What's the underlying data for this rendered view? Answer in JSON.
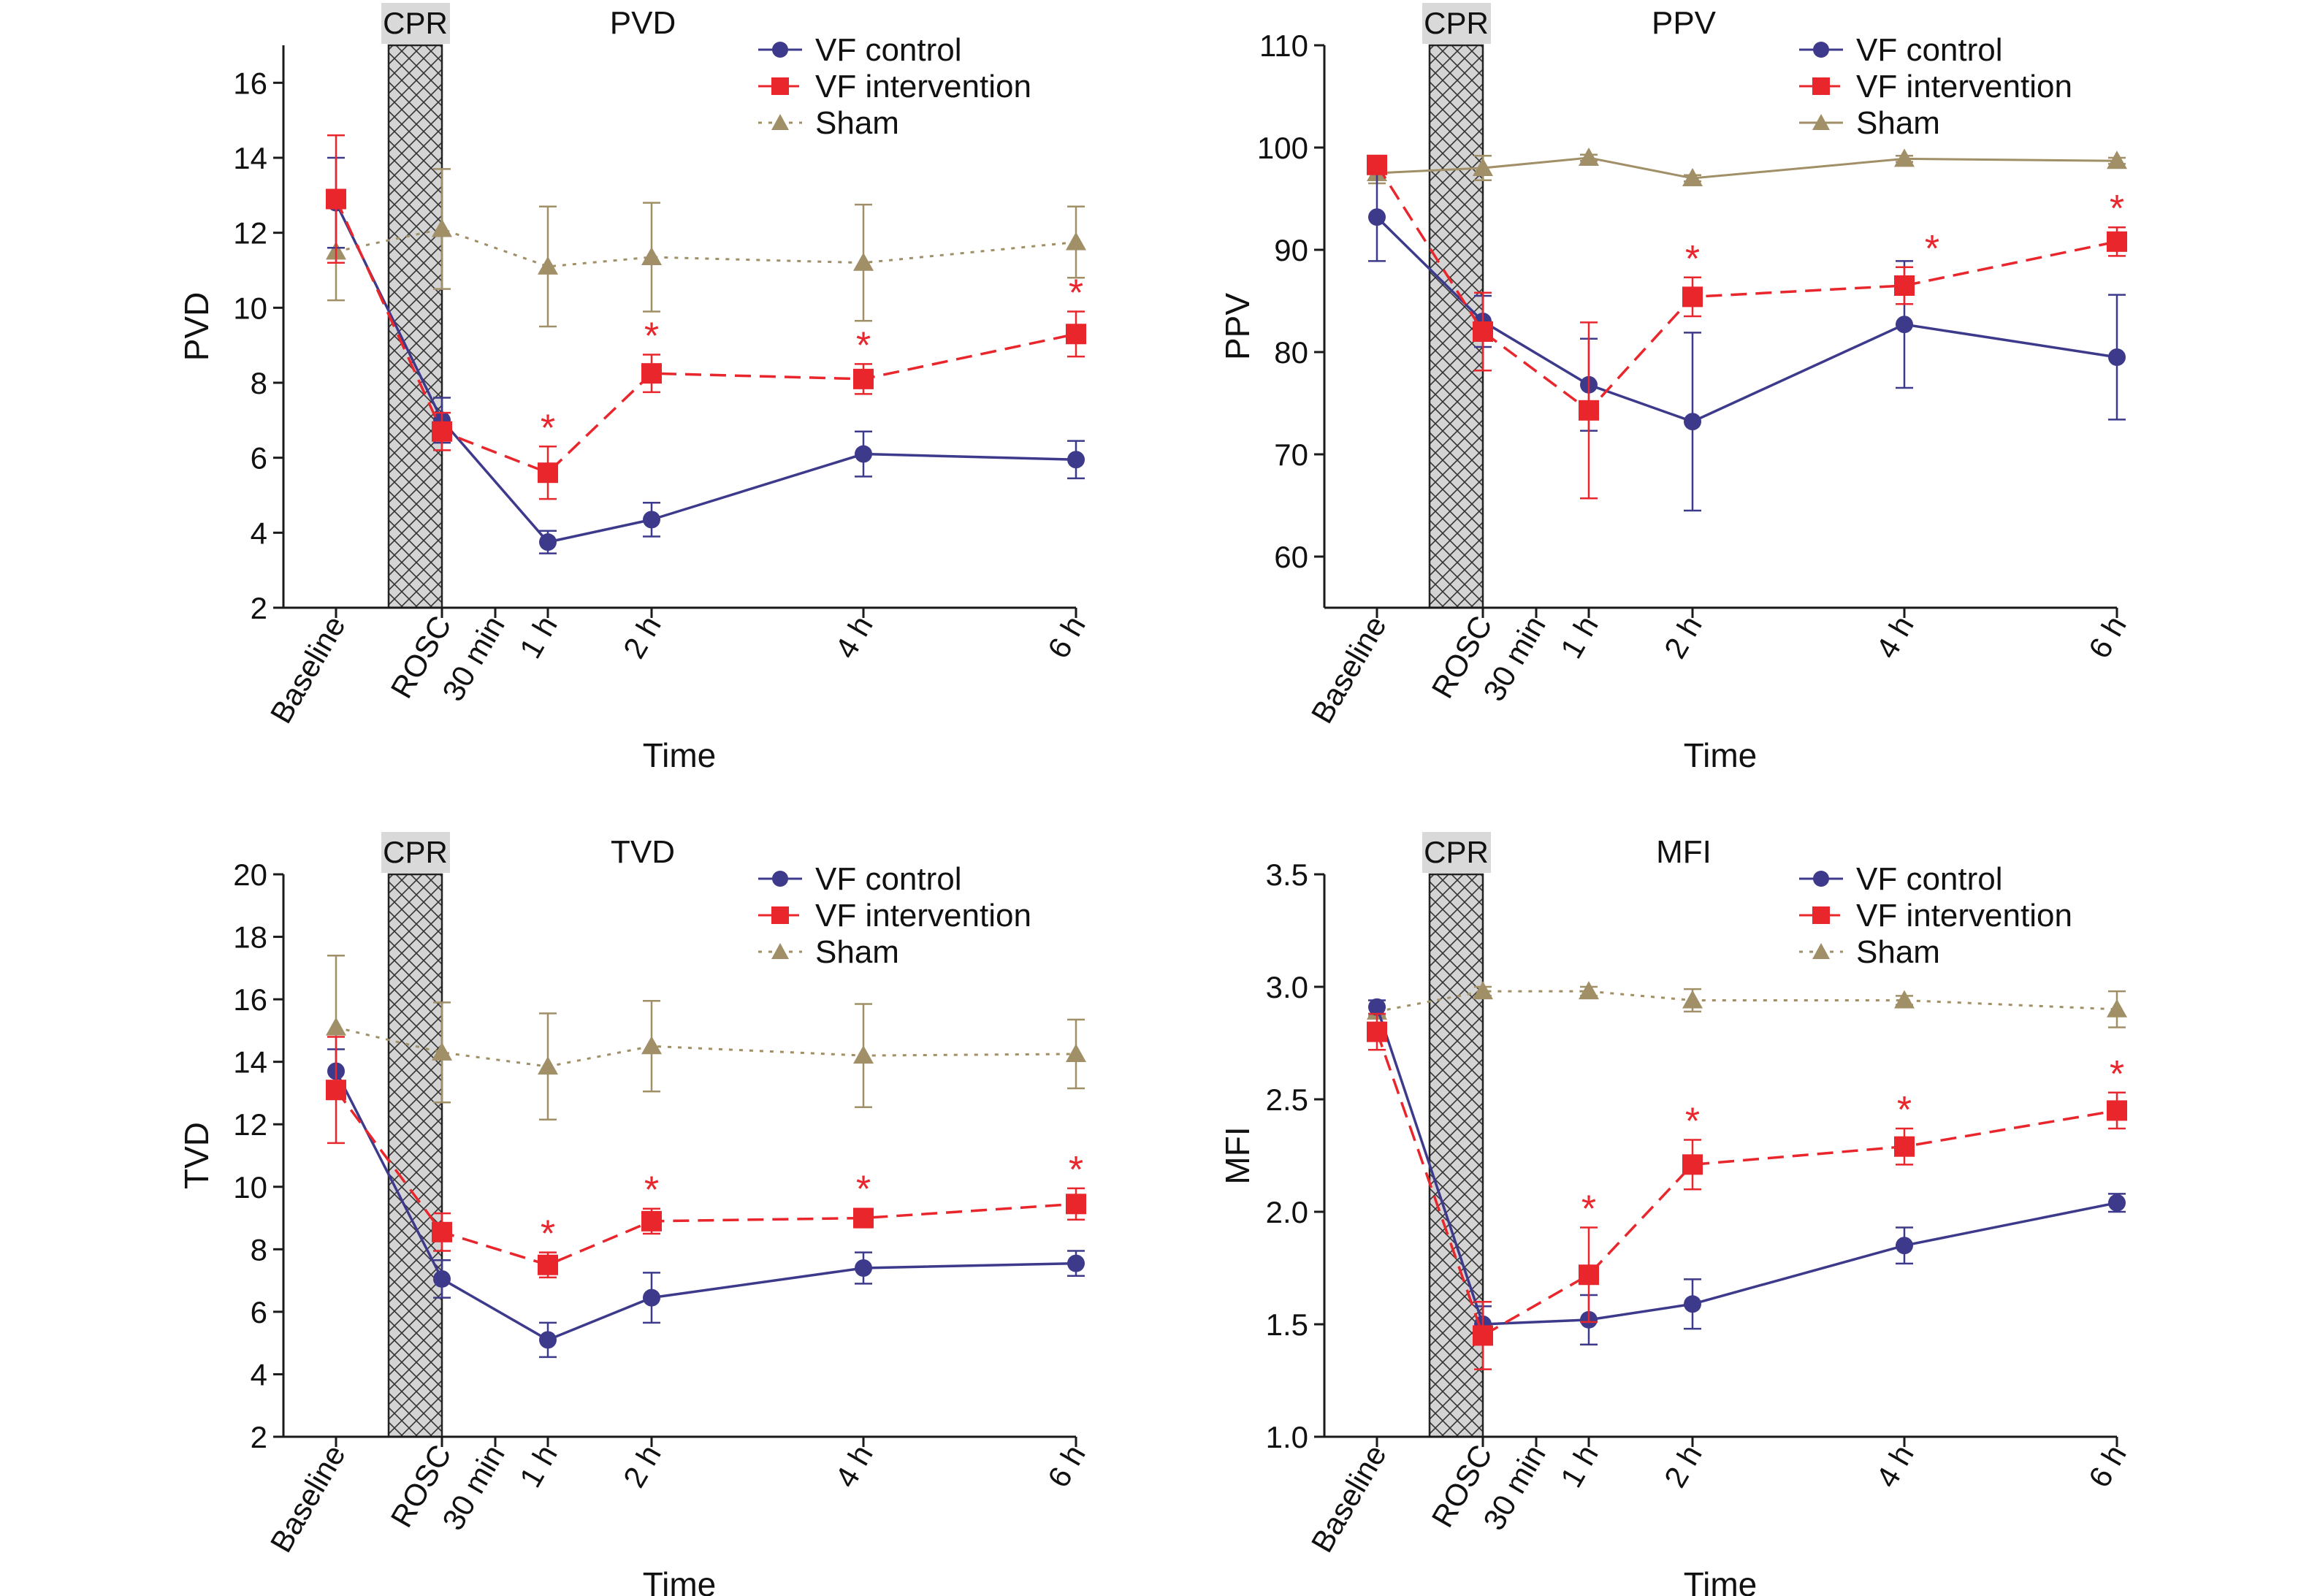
{
  "colors": {
    "control": "#3d3a8c",
    "intervention": "#e8262c",
    "sham": "#a08f67",
    "axis": "#1a1a1a",
    "cpr_box": "#d4d4d4",
    "cpr_label_box": "#d9d9d9"
  },
  "cpr_label": "CPR",
  "time_ticks": [
    "Baseline",
    "ROSC",
    "30 min",
    "1 h",
    "2 h",
    "4 h",
    "6 h"
  ],
  "chart_data": [
    {
      "type": "line",
      "panel": "PVD",
      "title": "PVD",
      "xlabel": "Time",
      "ylabel": "PVD",
      "ylim": [
        2,
        17
      ],
      "yticks": [
        "2",
        "4",
        "6",
        "8",
        "10",
        "12",
        "14",
        "16"
      ],
      "x": [
        "Baseline",
        "ROSC",
        "30 min",
        "1 h",
        "2 h",
        "4 h",
        "6 h"
      ],
      "series": [
        {
          "name": "VF control",
          "marker": "circle",
          "style": "solid",
          "points": [
            [
              "Baseline",
              12.8,
              1.2
            ],
            [
              "ROSC",
              7.0,
              0.6
            ],
            [
              "1 h",
              3.75,
              0.3
            ],
            [
              "2 h",
              4.35,
              0.45
            ],
            [
              "4 h",
              6.1,
              0.6
            ],
            [
              "6 h",
              5.95,
              0.5
            ]
          ]
        },
        {
          "name": "VF intervention",
          "marker": "square",
          "style": "dashed",
          "points": [
            [
              "Baseline",
              12.9,
              1.7
            ],
            [
              "ROSC",
              6.7,
              0.5
            ],
            [
              "1 h",
              5.6,
              0.7
            ],
            [
              "2 h",
              8.25,
              0.5
            ],
            [
              "4 h",
              8.1,
              0.4
            ],
            [
              "6 h",
              9.3,
              0.6
            ]
          ],
          "significant": [
            "1 h",
            "2 h",
            "4 h",
            "6 h"
          ]
        },
        {
          "name": "Sham",
          "marker": "triangle",
          "style": "dotted",
          "points": [
            [
              "Baseline",
              11.5,
              1.3
            ],
            [
              "ROSC",
              12.1,
              1.6
            ],
            [
              "1 h",
              11.1,
              1.6
            ],
            [
              "2 h",
              11.35,
              1.45
            ],
            [
              "4 h",
              11.2,
              1.55
            ],
            [
              "6 h",
              11.75,
              0.95
            ]
          ]
        }
      ]
    },
    {
      "type": "line",
      "panel": "PPV",
      "title": "PPV",
      "xlabel": "Time",
      "ylabel": "PPV",
      "ylim": [
        55,
        110
      ],
      "yticks": [
        "60",
        "70",
        "80",
        "90",
        "100",
        "110"
      ],
      "x": [
        "Baseline",
        "ROSC",
        "30 min",
        "1 h",
        "2 h",
        "4 h",
        "6 h"
      ],
      "series": [
        {
          "name": "VF control",
          "marker": "circle",
          "style": "solid",
          "points": [
            [
              "Baseline",
              93.2,
              4.3
            ],
            [
              "ROSC",
              83.0,
              2.5
            ],
            [
              "1 h",
              76.8,
              4.5
            ],
            [
              "2 h",
              73.2,
              8.7
            ],
            [
              "4 h",
              82.7,
              6.2
            ],
            [
              "6 h",
              79.5,
              6.1
            ]
          ]
        },
        {
          "name": "VF intervention",
          "marker": "square",
          "style": "dashed",
          "points": [
            [
              "Baseline",
              98.3,
              0.8
            ],
            [
              "ROSC",
              82.0,
              3.8
            ],
            [
              "1 h",
              74.3,
              8.6
            ],
            [
              "2 h",
              85.4,
              1.9
            ],
            [
              "4 h",
              86.5,
              1.8
            ],
            [
              "6 h",
              90.8,
              1.4
            ]
          ],
          "significant": [
            "2 h",
            "4 h",
            "6 h"
          ]
        },
        {
          "name": "Sham",
          "marker": "triangle",
          "style": "solid",
          "points": [
            [
              "Baseline",
              97.5,
              1.0
            ],
            [
              "ROSC",
              98.0,
              1.2
            ],
            [
              "1 h",
              99.0,
              0.3
            ],
            [
              "2 h",
              97.0,
              0.3
            ],
            [
              "4 h",
              98.9,
              0.3
            ],
            [
              "6 h",
              98.7,
              0.3
            ]
          ]
        }
      ]
    },
    {
      "type": "line",
      "panel": "TVD",
      "title": "TVD",
      "xlabel": "Time",
      "ylabel": "TVD",
      "ylim": [
        2,
        20
      ],
      "yticks": [
        "2",
        "4",
        "6",
        "8",
        "10",
        "12",
        "14",
        "16",
        "18",
        "20"
      ],
      "x": [
        "Baseline",
        "ROSC",
        "30 min",
        "1 h",
        "2 h",
        "4 h",
        "6 h"
      ],
      "series": [
        {
          "name": "VF control",
          "marker": "circle",
          "style": "solid",
          "points": [
            [
              "Baseline",
              13.7,
              0.7
            ],
            [
              "ROSC",
              7.05,
              0.6
            ],
            [
              "1 h",
              5.1,
              0.55
            ],
            [
              "2 h",
              6.45,
              0.8
            ],
            [
              "4 h",
              7.4,
              0.5
            ],
            [
              "6 h",
              7.55,
              0.4
            ]
          ]
        },
        {
          "name": "VF intervention",
          "marker": "square",
          "style": "dashed",
          "points": [
            [
              "Baseline",
              13.1,
              1.7
            ],
            [
              "ROSC",
              8.55,
              0.6
            ],
            [
              "1 h",
              7.5,
              0.4
            ],
            [
              "2 h",
              8.9,
              0.4
            ],
            [
              "4 h",
              9.0,
              0.3
            ],
            [
              "6 h",
              9.45,
              0.5
            ]
          ],
          "significant": [
            "1 h",
            "2 h",
            "4 h",
            "6 h"
          ]
        },
        {
          "name": "Sham",
          "marker": "triangle",
          "style": "dotted",
          "points": [
            [
              "Baseline",
              15.1,
              2.3
            ],
            [
              "ROSC",
              14.3,
              1.6
            ],
            [
              "1 h",
              13.85,
              1.7
            ],
            [
              "2 h",
              14.5,
              1.45
            ],
            [
              "4 h",
              14.2,
              1.65
            ],
            [
              "6 h",
              14.25,
              1.1
            ]
          ]
        }
      ]
    },
    {
      "type": "line",
      "panel": "MFI",
      "title": "MFI",
      "xlabel": "Time",
      "ylabel": "MFI",
      "ylim": [
        1.0,
        3.5
      ],
      "yticks": [
        "1.0",
        "1.5",
        "2.0",
        "2.5",
        "3.0",
        "3.5"
      ],
      "x": [
        "Baseline",
        "ROSC",
        "30 min",
        "1 h",
        "2 h",
        "4 h",
        "6 h"
      ],
      "series": [
        {
          "name": "VF control",
          "marker": "circle",
          "style": "solid",
          "points": [
            [
              "Baseline",
              2.91,
              0.03
            ],
            [
              "ROSC",
              1.5,
              0.08
            ],
            [
              "1 h",
              1.52,
              0.11
            ],
            [
              "2 h",
              1.59,
              0.11
            ],
            [
              "4 h",
              1.85,
              0.08
            ],
            [
              "6 h",
              2.04,
              0.04
            ]
          ]
        },
        {
          "name": "VF intervention",
          "marker": "square",
          "style": "dashed",
          "points": [
            [
              "Baseline",
              2.8,
              0.08
            ],
            [
              "ROSC",
              1.45,
              0.15
            ],
            [
              "1 h",
              1.72,
              0.21
            ],
            [
              "2 h",
              2.21,
              0.11
            ],
            [
              "4 h",
              2.29,
              0.08
            ],
            [
              "6 h",
              2.45,
              0.08
            ]
          ],
          "significant": [
            "1 h",
            "2 h",
            "4 h",
            "6 h"
          ]
        },
        {
          "name": "Sham",
          "marker": "triangle",
          "style": "dotted",
          "points": [
            [
              "Baseline",
              2.89,
              0.02
            ],
            [
              "ROSC",
              2.98,
              0.02
            ],
            [
              "1 h",
              2.98,
              0.02
            ],
            [
              "2 h",
              2.94,
              0.05
            ],
            [
              "4 h",
              2.94,
              0.02
            ],
            [
              "6 h",
              2.9,
              0.08
            ]
          ]
        }
      ]
    }
  ]
}
